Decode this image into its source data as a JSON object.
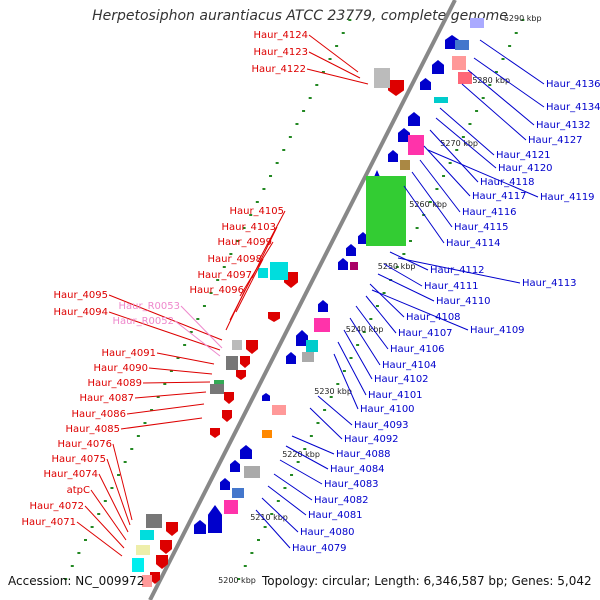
{
  "title": "Herpetosiphon aurantiacus ATCC 23779, complete genome",
  "accession": "Accession: NC_009972",
  "summary": "Topology: circular; Length: 6,346,587 bp; Genes: 5,042",
  "scale_labels": [
    "5290 kbp",
    "5280 kbp",
    "5270 kbp",
    "5260 kbp",
    "5250 kbp",
    "5240 kbp",
    "5230 kbp",
    "5220 kbp",
    "5210 kbp",
    "5200 kbp"
  ],
  "left_labels": [
    "Haur_4124",
    "Haur_4123",
    "Haur_4122",
    "Haur_4105",
    "Haur_4103",
    "Haur_4099",
    "Haur_4098",
    "Haur_4097",
    "Haur_4096",
    "Haur_4095",
    "Haur_R0053",
    "Haur_4094",
    "Haur_R0052",
    "Haur_4091",
    "Haur_4090",
    "Haur_4089",
    "Haur_4087",
    "Haur_4086",
    "Haur_4085",
    "Haur_4076",
    "Haur_4075",
    "Haur_4074",
    "atpC",
    "Haur_4072",
    "Haur_4071"
  ],
  "right_labels": [
    "Haur_4136",
    "Haur_4134",
    "Haur_4132",
    "Haur_4127",
    "Haur_4121",
    "Haur_4120",
    "Haur_4118",
    "Haur_4117",
    "Haur_4119",
    "Haur_4116",
    "Haur_4115",
    "Haur_4114",
    "Haur_4112",
    "Haur_4113",
    "Haur_4111",
    "Haur_4110",
    "Haur_4108",
    "Haur_4109",
    "Haur_4107",
    "Haur_4106",
    "Haur_4104",
    "Haur_4102",
    "Haur_4101",
    "Haur_4100",
    "Haur_4093",
    "Haur_4092",
    "Haur_4088",
    "Haur_4084",
    "Haur_4083",
    "Haur_4082",
    "Haur_4081",
    "Haur_4080",
    "Haur_4079"
  ],
  "colors": {
    "forward": "#dd0000",
    "reverse": "#0000cc",
    "rna": "#ee88cc",
    "backbone": "#888888",
    "ticks": "#228822"
  }
}
